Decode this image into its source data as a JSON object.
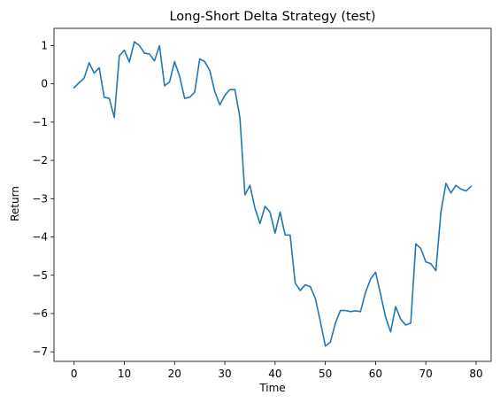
{
  "chart_data": {
    "type": "line",
    "title": "Long-Short Delta Strategy (test)",
    "xlabel": "Time",
    "ylabel": "Return",
    "xlim": [
      -4,
      83
    ],
    "ylim": [
      -7.25,
      1.45
    ],
    "xticks": [
      0,
      10,
      20,
      30,
      40,
      50,
      60,
      70,
      80
    ],
    "yticks": [
      1,
      0,
      -1,
      -2,
      -3,
      -4,
      -5,
      -6,
      -7
    ],
    "ytick_labels": [
      "1",
      "0",
      "−1",
      "−2",
      "−3",
      "−4",
      "−5",
      "−6",
      "−7"
    ],
    "grid": false,
    "series": [
      {
        "color": "#1f77b4",
        "x": [
          0,
          1,
          2,
          3,
          4,
          5,
          6,
          7,
          8,
          9,
          10,
          11,
          12,
          13,
          14,
          15,
          16,
          17,
          18,
          19,
          20,
          21,
          22,
          23,
          24,
          25,
          26,
          27,
          28,
          29,
          30,
          31,
          32,
          33,
          34,
          35,
          36,
          37,
          38,
          39,
          40,
          41,
          42,
          43,
          44,
          45,
          46,
          47,
          48,
          49,
          50,
          51,
          52,
          53,
          54,
          55,
          56,
          57,
          58,
          59,
          60,
          61,
          62,
          63,
          64,
          65,
          66,
          67,
          68,
          69,
          70,
          71,
          72,
          73,
          74,
          75,
          76,
          77,
          78,
          79
        ],
        "y": [
          -0.1,
          0.03,
          0.15,
          0.55,
          0.28,
          0.42,
          -0.35,
          -0.38,
          -0.88,
          0.73,
          0.88,
          0.57,
          1.1,
          1.0,
          0.8,
          0.78,
          0.6,
          1.0,
          -0.05,
          0.05,
          0.58,
          0.2,
          -0.38,
          -0.35,
          -0.22,
          0.65,
          0.58,
          0.35,
          -0.2,
          -0.55,
          -0.3,
          -0.15,
          -0.15,
          -0.88,
          -2.9,
          -2.65,
          -3.25,
          -3.65,
          -3.2,
          -3.35,
          -3.9,
          -3.35,
          -3.95,
          -3.95,
          -5.2,
          -5.4,
          -5.25,
          -5.3,
          -5.6,
          -6.2,
          -6.85,
          -6.75,
          -6.25,
          -5.92,
          -5.92,
          -5.95,
          -5.93,
          -5.95,
          -5.45,
          -5.1,
          -4.92,
          -5.5,
          -6.1,
          -6.48,
          -5.82,
          -6.15,
          -6.3,
          -6.25,
          -4.18,
          -4.3,
          -4.65,
          -4.7,
          -4.88,
          -3.35,
          -2.6,
          -2.85,
          -2.65,
          -2.75,
          -2.8,
          -2.68
        ]
      }
    ]
  }
}
